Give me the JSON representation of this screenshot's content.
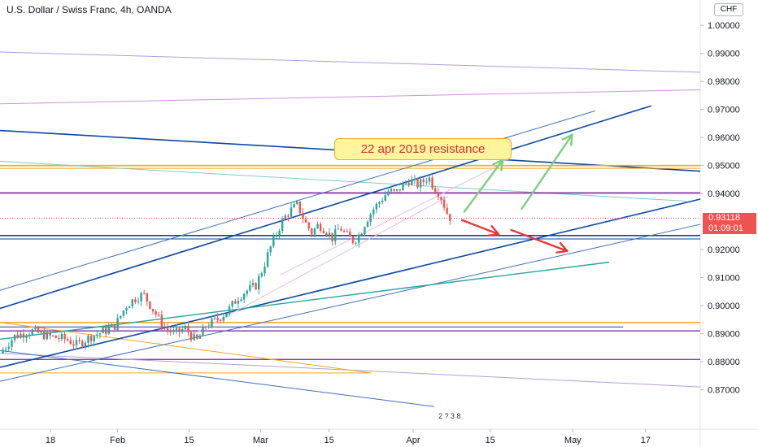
{
  "header": {
    "title": "U.S. Dollar / Swiss Franc, 4h, OANDA",
    "currency": "CHF"
  },
  "annotation": {
    "text": "22 apr 2019 resistance"
  },
  "last_price": {
    "value": "0.93118",
    "countdown": "01:09:01",
    "price": 0.93118
  },
  "logo": {
    "text": "2 ? 3 8"
  },
  "colors": {
    "up_candle": "#26a69a",
    "down_candle": "#ef5350",
    "channel": "#0d47a1",
    "channel_thin": "#3f6fb5",
    "orange": "#f5a623",
    "purple": "#7b1fa2",
    "green_arrow": "#66bb6a",
    "red_arrow": "#e53935",
    "teal": "#26a69a"
  },
  "chart_data": {
    "type": "candlestick",
    "title": "U.S. Dollar / Swiss Franc, 4h, OANDA",
    "ylim": [
      0.86,
      1.005
    ],
    "y_ticks": [
      "1.00000",
      "0.99000",
      "0.98000",
      "0.97000",
      "0.96000",
      "0.95000",
      "0.94000",
      "0.92000",
      "0.91000",
      "0.90000",
      "0.89000",
      "0.88000",
      "0.87000"
    ],
    "y_tick_values": [
      1.0,
      0.99,
      0.98,
      0.97,
      0.96,
      0.95,
      0.94,
      0.92,
      0.91,
      0.9,
      0.89,
      0.88,
      0.87
    ],
    "x_ticks": [
      "18",
      "Feb",
      "15",
      "Mar",
      "15",
      "Apr",
      "15",
      "May",
      "17"
    ],
    "x_tick_positions": [
      0.072,
      0.168,
      0.27,
      0.372,
      0.47,
      0.59,
      0.7,
      0.818,
      0.922
    ],
    "x_domain": [
      0,
      1
    ],
    "price_path": [
      [
        0.0,
        0.883
      ],
      [
        0.02,
        0.889
      ],
      [
        0.045,
        0.891
      ],
      [
        0.07,
        0.889
      ],
      [
        0.095,
        0.888
      ],
      [
        0.11,
        0.886
      ],
      [
        0.13,
        0.889
      ],
      [
        0.15,
        0.891
      ],
      [
        0.165,
        0.893
      ],
      [
        0.18,
        0.9
      ],
      [
        0.195,
        0.903
      ],
      [
        0.205,
        0.904
      ],
      [
        0.22,
        0.898
      ],
      [
        0.235,
        0.892
      ],
      [
        0.25,
        0.89
      ],
      [
        0.265,
        0.892
      ],
      [
        0.28,
        0.887
      ],
      [
        0.295,
        0.893
      ],
      [
        0.31,
        0.895
      ],
      [
        0.325,
        0.898
      ],
      [
        0.34,
        0.903
      ],
      [
        0.35,
        0.905
      ],
      [
        0.365,
        0.907
      ],
      [
        0.375,
        0.913
      ],
      [
        0.385,
        0.92
      ],
      [
        0.395,
        0.926
      ],
      [
        0.405,
        0.931
      ],
      [
        0.415,
        0.934
      ],
      [
        0.425,
        0.936
      ],
      [
        0.435,
        0.93
      ],
      [
        0.445,
        0.926
      ],
      [
        0.455,
        0.929
      ],
      [
        0.465,
        0.927
      ],
      [
        0.475,
        0.924
      ],
      [
        0.485,
        0.928
      ],
      [
        0.495,
        0.925
      ],
      [
        0.505,
        0.923
      ],
      [
        0.515,
        0.926
      ],
      [
        0.522,
        0.93
      ],
      [
        0.532,
        0.934
      ],
      [
        0.545,
        0.938
      ],
      [
        0.555,
        0.941
      ],
      [
        0.565,
        0.94
      ],
      [
        0.575,
        0.943
      ],
      [
        0.585,
        0.945
      ],
      [
        0.595,
        0.943
      ],
      [
        0.603,
        0.944
      ],
      [
        0.612,
        0.946
      ],
      [
        0.62,
        0.942
      ],
      [
        0.628,
        0.94
      ],
      [
        0.634,
        0.936
      ],
      [
        0.64,
        0.932
      ],
      [
        0.645,
        0.931
      ]
    ],
    "price_lines": [
      {
        "name": "",
        "x": [
          0.0,
          1.0
        ],
        "y": [
          0.9905,
          0.9833
        ],
        "color": "#b39ddb",
        "width": 1
      },
      {
        "name": "",
        "x": [
          0.0,
          1.0
        ],
        "y": [
          0.972,
          0.977
        ],
        "color": "#ce93d8",
        "width": 1
      },
      {
        "name": "",
        "x": [
          0.0,
          1.0
        ],
        "y": [
          0.9625,
          0.948
        ],
        "color": "#0d47a1",
        "width": 1.6
      },
      {
        "name": "",
        "x": [
          0.0,
          1.0
        ],
        "y": [
          0.95,
          0.95
        ],
        "color": "#f5a623",
        "width": 1.6
      },
      {
        "name": "",
        "x": [
          0.0,
          1.0
        ],
        "y": [
          0.949,
          0.949
        ],
        "color": "#f5a623",
        "width": 1
      },
      {
        "name": "",
        "x": [
          0.0,
          0.98
        ],
        "y": [
          0.9515,
          0.9373
        ],
        "color": "#80cbc4",
        "width": 1
      },
      {
        "name": "",
        "x": [
          0.0,
          1.0
        ],
        "y": [
          0.9402,
          0.9402
        ],
        "color": "#7b1fa2",
        "width": 1.6
      },
      {
        "name": "",
        "x": [
          0.0,
          1.0
        ],
        "y": [
          0.925,
          0.925
        ],
        "color": "#0d47a1",
        "width": 1.6
      },
      {
        "name": "",
        "x": [
          0.0,
          1.0
        ],
        "y": [
          0.9238,
          0.9238
        ],
        "color": "#0d47a1",
        "width": 1
      },
      {
        "name": "",
        "x": [
          0.0,
          1.0
        ],
        "y": [
          0.894,
          0.894
        ],
        "color": "#f5a623",
        "width": 1.4
      },
      {
        "name": "",
        "x": [
          0.0,
          0.89
        ],
        "y": [
          0.8924,
          0.8924
        ],
        "color": "#0d47a1",
        "width": 1
      },
      {
        "name": "",
        "x": [
          0.0,
          1.0
        ],
        "y": [
          0.891,
          0.891
        ],
        "color": "#7b1fa2",
        "width": 1.2
      },
      {
        "name": "",
        "x": [
          0.0,
          1.0
        ],
        "y": [
          0.8808,
          0.8808
        ],
        "color": "#7b1fa2",
        "width": 1.2
      },
      {
        "name": "",
        "x": [
          0.0,
          1.0
        ],
        "y": [
          0.883,
          0.871
        ],
        "color": "#b39ddb",
        "width": 1
      },
      {
        "name": "",
        "x": [
          0.0,
          0.53
        ],
        "y": [
          0.876,
          0.876
        ],
        "color": "#f5a623",
        "width": 1
      },
      {
        "name": "",
        "x": [
          0.0,
          0.53
        ],
        "y": [
          0.894,
          0.876
        ],
        "color": "#f5a623",
        "width": 1
      },
      {
        "name": "",
        "x": [
          0.0,
          0.62
        ],
        "y": [
          0.884,
          0.864
        ],
        "color": "#3f6fb5",
        "width": 1
      },
      {
        "name": "",
        "x": [
          0.0,
          1.0
        ],
        "y": [
          0.878,
          0.938
        ],
        "color": "#0d47a1",
        "width": 1.6
      },
      {
        "name": "",
        "x": [
          0.0,
          0.93
        ],
        "y": [
          0.899,
          0.9713
        ],
        "color": "#0d47a1",
        "width": 1.6
      },
      {
        "name": "",
        "x": [
          0.0,
          0.85
        ],
        "y": [
          0.9055,
          0.9695
        ],
        "color": "#3f6fb5",
        "width": 1
      },
      {
        "name": "",
        "x": [
          0.0,
          1.0
        ],
        "y": [
          0.873,
          0.929
        ],
        "color": "#3f6fb5",
        "width": 1
      },
      {
        "name": "",
        "x": [
          0.0,
          0.87
        ],
        "y": [
          0.888,
          0.9155
        ],
        "color": "#26a69a",
        "width": 1.4
      },
      {
        "name": "",
        "x": [
          0.27,
          0.64
        ],
        "y": [
          0.889,
          0.939
        ],
        "color": "#e1bee7",
        "width": 1
      },
      {
        "name": "",
        "x": [
          0.4,
          0.72
        ],
        "y": [
          0.911,
          0.951
        ],
        "color": "#e1bee7",
        "width": 1
      }
    ],
    "arrows": [
      {
        "name": "green-arrow-1",
        "x": [
          0.663,
          0.718
        ],
        "y": [
          0.9335,
          0.952
        ],
        "color": "#7ccf7c"
      },
      {
        "name": "green-arrow-2",
        "x": [
          0.745,
          0.817
        ],
        "y": [
          0.9345,
          0.961
        ],
        "color": "#7ccf7c"
      },
      {
        "name": "red-arrow-1",
        "x": [
          0.66,
          0.712
        ],
        "y": [
          0.9305,
          0.9255
        ],
        "color": "#e53935"
      },
      {
        "name": "red-arrow-2",
        "x": [
          0.73,
          0.81
        ],
        "y": [
          0.927,
          0.9195
        ],
        "color": "#e53935"
      }
    ]
  }
}
